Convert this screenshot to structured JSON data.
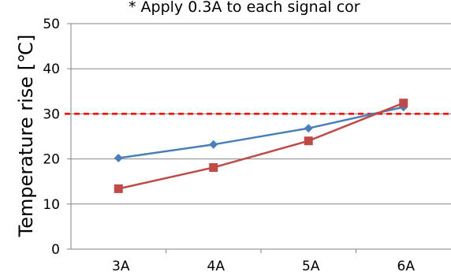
{
  "chart_data": {
    "type": "line",
    "note": "* Apply 0.3A to each signal cor",
    "ylabel": "Temperature rise [℃]",
    "categories": [
      "3A",
      "4A",
      "5A",
      "6A"
    ],
    "ylim": [
      0,
      50
    ],
    "yticks": [
      0,
      10,
      20,
      30,
      40,
      50
    ],
    "grid": true,
    "threshold": {
      "value": 30,
      "color": "#ff0000"
    },
    "series": [
      {
        "color": "#4a7ebb",
        "marker": "diamond",
        "values": [
          20.2,
          23.2,
          26.8,
          31.5
        ]
      },
      {
        "color": "#be4b48",
        "marker": "square",
        "values": [
          13.4,
          18.1,
          24.0,
          32.4
        ]
      }
    ]
  }
}
